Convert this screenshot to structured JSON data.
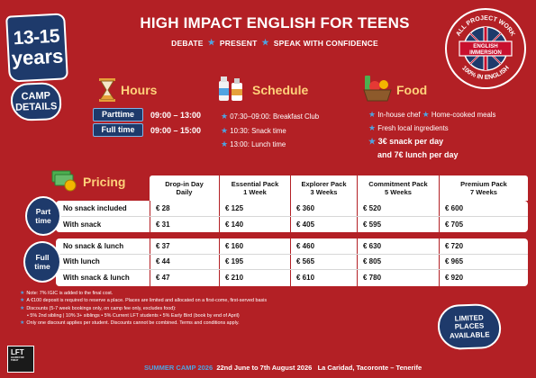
{
  "age_badge": {
    "line1": "13-15",
    "line2": "years"
  },
  "camp_details": {
    "line1": "CAMP",
    "line2": "DETAILS"
  },
  "title": "HIGH IMPACT ENGLISH FOR TEENS",
  "subtitle": [
    "DEBATE",
    "PRESENT",
    "SPEAK WITH CONFIDENCE"
  ],
  "emblem": {
    "top": "ALL PROJECT WORK",
    "center1": "ENGLISH",
    "center2": "IMMERSION",
    "bottom": "100% IN ENGLISH"
  },
  "hours": {
    "title": "Hours",
    "rows": [
      {
        "label": "Parttime",
        "time": "09:00 – 13:00"
      },
      {
        "label": "Full time",
        "time": "09:00 – 15:00"
      }
    ]
  },
  "schedule": {
    "title": "Schedule",
    "items": [
      "07:30–09:00: Breakfast Club",
      "10:30: Snack time",
      "13:00: Lunch time"
    ]
  },
  "food": {
    "title": "Food",
    "items": [
      "In-house chef",
      "Home-cooked meals",
      "Fresh local ingredients"
    ],
    "price_line1": "3€ snack per day",
    "price_line2": "and 7€ lunch per day"
  },
  "pricing": {
    "title": "Pricing",
    "columns": [
      {
        "l1": "Drop-in Day",
        "l2": "Daily"
      },
      {
        "l1": "Essential Pack",
        "l2": "1 Week"
      },
      {
        "l1": "Explorer Pack",
        "l2": "3 Weeks"
      },
      {
        "l1": "Commitment Pack",
        "l2": "5 Weeks"
      },
      {
        "l1": "Premium Pack",
        "l2": "7 Weeks"
      }
    ],
    "part_time": {
      "badge1": "Part",
      "badge2": "time",
      "rows": [
        {
          "label": "No snack included",
          "values": [
            "€ 28",
            "€ 125",
            "€ 360",
            "€ 520",
            "€ 600"
          ]
        },
        {
          "label": "With snack",
          "values": [
            "€ 31",
            "€ 140",
            "€ 405",
            "€ 595",
            "€ 705"
          ]
        }
      ]
    },
    "full_time": {
      "badge1": "Full",
      "badge2": "time",
      "rows": [
        {
          "label": "No snack & lunch",
          "values": [
            "€ 37",
            "€ 160",
            "€ 460",
            "€ 630",
            "€ 720"
          ]
        },
        {
          "label": "With lunch",
          "values": [
            "€ 44",
            "€ 195",
            "€ 565",
            "€ 805",
            "€ 965"
          ]
        },
        {
          "label": "With snack & lunch",
          "values": [
            "€ 47",
            "€ 210",
            "€ 610",
            "€ 780",
            "€ 920"
          ]
        }
      ]
    }
  },
  "notes": {
    "n1": "Note: 7% IGIC is added to the final cost.",
    "n2": "A €100 deposit is required to reserve a place. Places are limited and allocated on a first-come, first-served basis",
    "n3": "Discounts (5-7 week bookings only, on camp fee only, excludes food):",
    "n4": "• 5% 2nd sibling | 10% 3+ siblings • 5% Current LFT students • 5% Early Bird (book by end of April)",
    "n5": "Only one discount applies per student. Discounts cannot be combined. Terms and conditions apply."
  },
  "limited": {
    "l1": "LIMITED",
    "l2": "PLACES",
    "l3": "AVAILABLE"
  },
  "logo": {
    "text1": "LFT",
    "text2": "LEARN FOR TODAY"
  },
  "footer": {
    "camp": "SUMMER CAMP 2026",
    "dates": "22nd June to 7th August 2026",
    "location": "La Caridad, Tacoronte – Tenerife"
  },
  "colors": {
    "background": "#b32025",
    "navy": "#1e3a6b",
    "accent_blue": "#4fa3e0",
    "heading_gold": "#ffd27a"
  }
}
